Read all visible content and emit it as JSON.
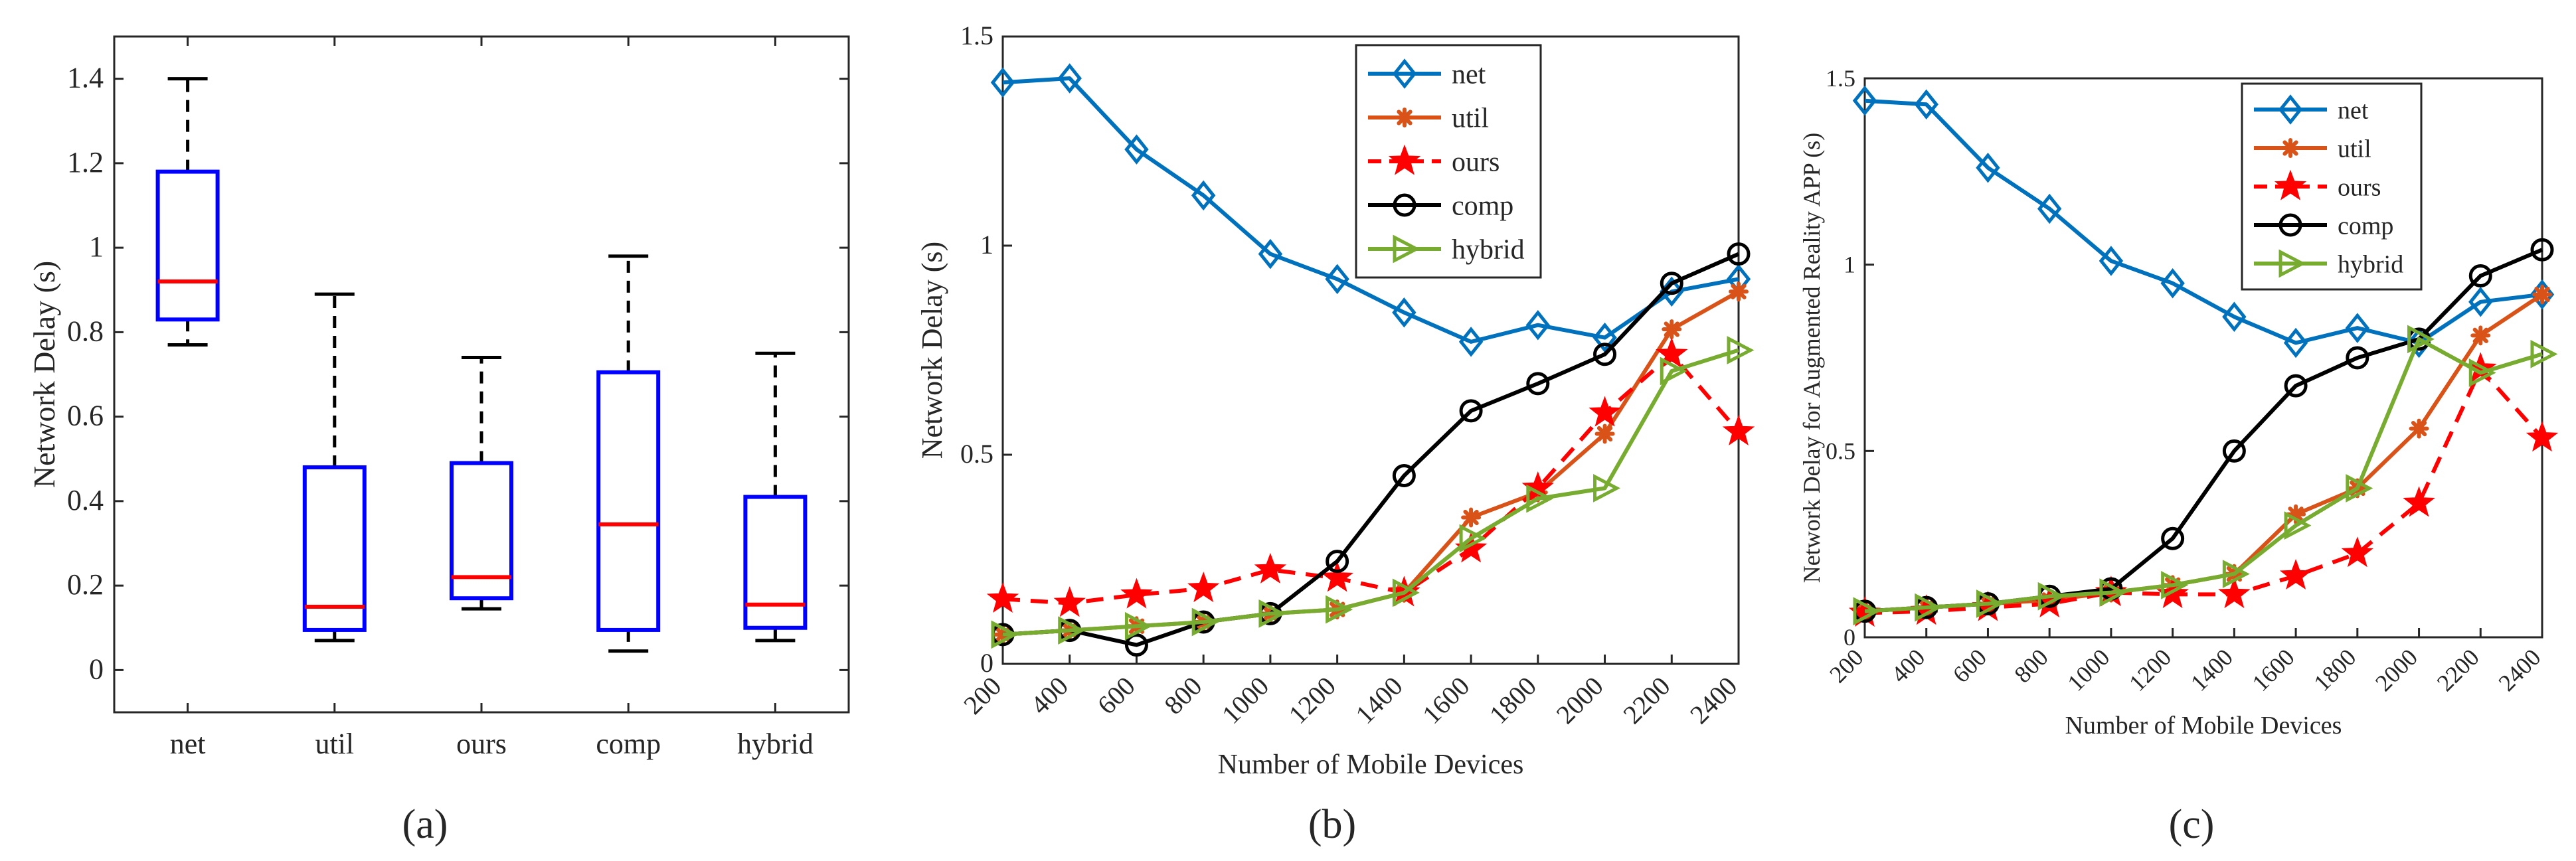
{
  "chart_data": [
    {
      "panel": "(a)",
      "type": "box",
      "title": "",
      "ylabel": "Network  Delay (s)",
      "xlabel": "",
      "ylim": [
        -0.1,
        1.5
      ],
      "yticks": [
        0,
        0.2,
        0.4,
        0.6,
        0.8,
        1,
        1.2,
        1.4
      ],
      "ytick_labels": [
        "0",
        "0.2",
        "0.4",
        "0.6",
        "0.8",
        "1",
        "1.2",
        "1.4"
      ],
      "categories": [
        "net",
        "util",
        "ours",
        "comp",
        "hybrid"
      ],
      "boxes": [
        {
          "name": "net",
          "min": 0.77,
          "q1": 0.83,
          "median": 0.92,
          "q3": 1.18,
          "max": 1.4
        },
        {
          "name": "util",
          "min": 0.07,
          "q1": 0.095,
          "median": 0.15,
          "q3": 0.48,
          "max": 0.89
        },
        {
          "name": "ours",
          "min": 0.145,
          "q1": 0.17,
          "median": 0.22,
          "q3": 0.49,
          "max": 0.74
        },
        {
          "name": "comp",
          "min": 0.045,
          "q1": 0.095,
          "median": 0.345,
          "q3": 0.705,
          "max": 0.98
        },
        {
          "name": "hybrid",
          "min": 0.07,
          "q1": 0.1,
          "median": 0.155,
          "q3": 0.41,
          "max": 0.75
        }
      ],
      "colors": {
        "box": "#0000ff",
        "median": "#ff0000",
        "whisker": "#000000"
      }
    },
    {
      "panel": "(b)",
      "type": "line",
      "title": "",
      "ylabel": "Network  Delay (s)",
      "xlabel": "Number of Mobile Devices",
      "ylim": [
        0,
        1.5
      ],
      "yticks": [
        0,
        0.5,
        1,
        1.5
      ],
      "ytick_labels": [
        "0",
        "0.5",
        "1",
        "1.5"
      ],
      "x": [
        200,
        400,
        600,
        800,
        1000,
        1200,
        1400,
        1600,
        1800,
        2000,
        2200,
        2400
      ],
      "xtick_labels": [
        "200",
        "400",
        "600",
        "800",
        "1000",
        "1200",
        "1400",
        "1600",
        "1800",
        "2000",
        "2200",
        "2400"
      ],
      "legend": "top-center",
      "series": [
        {
          "name": "net",
          "color": "#0072bd",
          "marker": "diamond",
          "dash": false,
          "values": [
            1.39,
            1.4,
            1.23,
            1.12,
            0.98,
            0.92,
            0.84,
            0.77,
            0.81,
            0.78,
            0.89,
            0.92
          ]
        },
        {
          "name": "util",
          "color": "#d95319",
          "marker": "asterisk",
          "dash": false,
          "values": [
            0.07,
            0.08,
            0.09,
            0.1,
            0.12,
            0.13,
            0.17,
            0.35,
            0.41,
            0.55,
            0.8,
            0.89
          ]
        },
        {
          "name": "ours",
          "color": "#ff0000",
          "marker": "star",
          "dash": true,
          "values": [
            0.155,
            0.145,
            0.165,
            0.18,
            0.225,
            0.205,
            0.17,
            0.275,
            0.42,
            0.6,
            0.74,
            0.555
          ]
        },
        {
          "name": "comp",
          "color": "#000000",
          "marker": "circle",
          "dash": false,
          "values": [
            0.07,
            0.08,
            0.045,
            0.1,
            0.12,
            0.245,
            0.45,
            0.605,
            0.67,
            0.74,
            0.91,
            0.98
          ]
        },
        {
          "name": "hybrid",
          "color": "#77ac30",
          "marker": "triangle-right",
          "dash": false,
          "values": [
            0.07,
            0.08,
            0.09,
            0.1,
            0.12,
            0.13,
            0.17,
            0.3,
            0.395,
            0.42,
            0.7,
            0.75
          ]
        }
      ]
    },
    {
      "panel": "(c)",
      "type": "line",
      "title": "",
      "ylabel": "Network  Delay for Augmented Reality APP (s)",
      "xlabel": "Number of Mobile Devices",
      "ylim": [
        0,
        1.5
      ],
      "yticks": [
        0,
        0.5,
        1,
        1.5
      ],
      "ytick_labels": [
        "0",
        "0.5",
        "1",
        "1.5"
      ],
      "x": [
        200,
        400,
        600,
        800,
        1000,
        1200,
        1400,
        1600,
        1800,
        2000,
        2200,
        2400
      ],
      "xtick_labels": [
        "200",
        "400",
        "600",
        "800",
        "1000",
        "1200",
        "1400",
        "1600",
        "1800",
        "2000",
        "2200",
        "2400"
      ],
      "legend": "top-center",
      "series": [
        {
          "name": "net",
          "color": "#0072bd",
          "marker": "diamond",
          "dash": false,
          "values": [
            1.44,
            1.43,
            1.26,
            1.15,
            1.01,
            0.95,
            0.86,
            0.79,
            0.83,
            0.79,
            0.9,
            0.92
          ]
        },
        {
          "name": "util",
          "color": "#d95319",
          "marker": "asterisk",
          "dash": false,
          "values": [
            0.07,
            0.08,
            0.09,
            0.1,
            0.12,
            0.14,
            0.17,
            0.33,
            0.4,
            0.56,
            0.81,
            0.92
          ]
        },
        {
          "name": "ours",
          "color": "#ff0000",
          "marker": "star",
          "dash": true,
          "values": [
            0.065,
            0.07,
            0.08,
            0.09,
            0.12,
            0.115,
            0.115,
            0.165,
            0.225,
            0.36,
            0.72,
            0.535
          ]
        },
        {
          "name": "comp",
          "color": "#000000",
          "marker": "circle",
          "dash": false,
          "values": [
            0.07,
            0.08,
            0.09,
            0.11,
            0.13,
            0.265,
            0.5,
            0.675,
            0.75,
            0.8,
            0.97,
            1.04
          ]
        },
        {
          "name": "hybrid",
          "color": "#77ac30",
          "marker": "triangle-right",
          "dash": false,
          "values": [
            0.07,
            0.08,
            0.09,
            0.11,
            0.12,
            0.14,
            0.17,
            0.3,
            0.4,
            0.8,
            0.71,
            0.76
          ]
        }
      ]
    }
  ]
}
